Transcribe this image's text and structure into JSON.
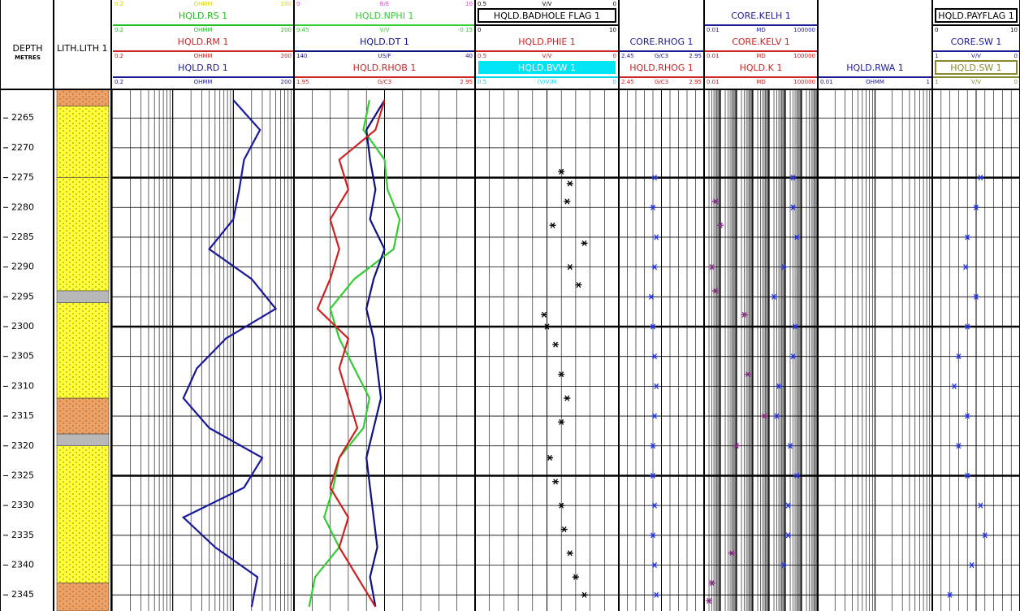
{
  "chart_data": {
    "type": "well_log",
    "depth_title": "DEPTH",
    "depth_unit": "METRES",
    "ylim": [
      2260.2,
      2347.7
    ],
    "yticks": [
      2265,
      2270,
      2275,
      2280,
      2285,
      2290,
      2295,
      2300,
      2305,
      2310,
      2315,
      2320,
      2325,
      2330,
      2335,
      2340,
      2345
    ],
    "lithology": {
      "name": "LITH.LITH 1",
      "intervals": [
        {
          "top": 2260.2,
          "base": 2263,
          "color": "#f0a060"
        },
        {
          "top": 2263,
          "base": 2275,
          "color": "#ffff33"
        },
        {
          "top": 2275,
          "base": 2294,
          "color": "#ffff33"
        },
        {
          "top": 2294,
          "base": 2296,
          "color": "#b8b8b8"
        },
        {
          "top": 2296,
          "base": 2312,
          "color": "#ffff33"
        },
        {
          "top": 2312,
          "base": 2318,
          "color": "#f0a060"
        },
        {
          "top": 2318,
          "base": 2320,
          "color": "#b8b8b8"
        },
        {
          "top": 2320,
          "base": 2343,
          "color": "#ffff33"
        },
        {
          "top": 2343,
          "base": 2347.7,
          "color": "#f0a060"
        }
      ]
    },
    "tracks": [
      {
        "scale": "log",
        "curves": [
          {
            "color": "#d8d800",
            "left": 0.2,
            "unit": "OHMM",
            "right": 200
          },
          {
            "name": "HQLD.RS 1",
            "color": "#22bb22",
            "left": 0.2,
            "unit": "OHMM",
            "right": 200
          },
          {
            "name": "HQLD.RM 1",
            "color": "#cc2222",
            "left": 0.2,
            "unit": "OHMM",
            "right": 200
          },
          {
            "name": "HQLD.RD 1",
            "color": "#1a1a99",
            "left": 0.2,
            "unit": "OHMM",
            "right": 200,
            "style": "line",
            "depths": [
              2262,
              2267,
              2272,
              2277,
              2282,
              2287,
              2292,
              2297,
              2302,
              2307,
              2312,
              2317,
              2322,
              2327,
              2332,
              2337,
              2342,
              2347
            ],
            "values": [
              20,
              55,
              30,
              25,
              20,
              8,
              40,
              100,
              15,
              5,
              3,
              8,
              60,
              30,
              3,
              10,
              50,
              40
            ]
          }
        ]
      },
      {
        "scale": "linear",
        "curves": [
          {
            "color": "#dd44dd",
            "left": 0,
            "unit": "B/E",
            "right": 10
          },
          {
            "name": "HQLD.NPHI 1",
            "color": "#33cc33",
            "left": 0.45,
            "unit": "V/V",
            "right": -0.15,
            "style": "line",
            "depths": [
              2262,
              2267,
              2272,
              2277,
              2282,
              2287,
              2292,
              2297,
              2302,
              2307,
              2312,
              2317,
              2322,
              2327,
              2332,
              2337,
              2342,
              2347
            ],
            "values": [
              0.2,
              0.22,
              0.15,
              0.14,
              0.1,
              0.12,
              0.25,
              0.33,
              0.3,
              0.25,
              0.2,
              0.22,
              0.3,
              0.32,
              0.35,
              0.3,
              0.38,
              0.4
            ]
          },
          {
            "name": "HQLD.DT 1",
            "color": "#101080",
            "left": 140,
            "unit": "US/F",
            "right": 40,
            "style": "line",
            "depths": [
              2262,
              2267,
              2272,
              2277,
              2282,
              2287,
              2292,
              2297,
              2302,
              2307,
              2312,
              2317,
              2322,
              2327,
              2332,
              2337,
              2342,
              2347
            ],
            "values": [
              90,
              100,
              98,
              95,
              98,
              90,
              96,
              100,
              96,
              94,
              92,
              96,
              100,
              98,
              96,
              94,
              98,
              95
            ]
          },
          {
            "name": "HQLD.RHOB 1",
            "color": "#cc2222",
            "left": 1.95,
            "unit": "G/C3",
            "right": 2.95,
            "style": "line",
            "depths": [
              2262,
              2267,
              2272,
              2277,
              2282,
              2287,
              2292,
              2297,
              2302,
              2307,
              2312,
              2317,
              2322,
              2327,
              2332,
              2337,
              2342,
              2347
            ],
            "values": [
              2.45,
              2.4,
              2.2,
              2.25,
              2.15,
              2.2,
              2.15,
              2.08,
              2.25,
              2.2,
              2.25,
              2.3,
              2.2,
              2.15,
              2.25,
              2.2,
              2.3,
              2.4
            ]
          }
        ]
      },
      {
        "scale": "linear",
        "curves": [
          {
            "color": "#000000",
            "left": 0.5,
            "unit": "V/V",
            "right": 0,
            "style": "points",
            "depths": [
              2274,
              2276,
              2279,
              2283,
              2286,
              2290,
              2293,
              2298,
              2300,
              2303,
              2308,
              2312,
              2316,
              2322,
              2326,
              2330,
              2334,
              2338,
              2342,
              2345
            ],
            "values": [
              0.2,
              0.17,
              0.18,
              0.23,
              0.12,
              0.17,
              0.14,
              0.26,
              0.25,
              0.22,
              0.2,
              0.18,
              0.2,
              0.24,
              0.22,
              0.2,
              0.19,
              0.17,
              0.15,
              0.12
            ]
          },
          {
            "name": "HQLD.BADHOLE FLAG 1",
            "color": "#000000",
            "left": 0,
            "right": 10,
            "box_stroke": "#000000"
          },
          {
            "name": "HQLD.PHIE 1",
            "color": "#cc2222",
            "left": 0.5,
            "unit": "V/V",
            "right": 0
          },
          {
            "name": "HQLD.BVW 1",
            "color": "#00d8e8",
            "left": 0.5,
            "unit": "(V/V)M",
            "right": 0,
            "box_fill": "#00e4f4"
          }
        ]
      },
      {
        "scale": "linear",
        "curves": [
          {
            "name": "CORE.RHOG 1",
            "color": "#1a1a99",
            "left": 2.45,
            "unit": "G/C3",
            "right": 2.95,
            "style": "points",
            "point_color": "#2233dd",
            "depths": [
              2275,
              2280,
              2285,
              2290,
              2295,
              2300,
              2305,
              2310,
              2315,
              2320,
              2325,
              2330,
              2335,
              2340,
              2345
            ],
            "values": [
              2.66,
              2.65,
              2.67,
              2.66,
              2.64,
              2.65,
              2.66,
              2.67,
              2.66,
              2.65,
              2.65,
              2.66,
              2.65,
              2.66,
              2.67
            ]
          },
          {
            "name": "HQLD.RHOG 1",
            "color": "#cc2222",
            "left": 2.45,
            "unit": "G/C3",
            "right": 2.95
          }
        ]
      },
      {
        "scale": "log",
        "curves": [
          {
            "name": "CORE.KELH 1",
            "color": "#1a1a99",
            "left": 0.01,
            "unit": "MD",
            "right": 100000,
            "style": "points",
            "point_color": "#2233dd",
            "depths": [
              2275,
              2280,
              2285,
              2290,
              2295,
              2300,
              2305,
              2310,
              2315,
              2320,
              2325,
              2330,
              2335,
              2340
            ],
            "values": [
              3000,
              3000,
              5000,
              800,
              200,
              4000,
              3000,
              400,
              300,
              2000,
              5000,
              1500,
              1500,
              800
            ]
          },
          {
            "name": "CORE.KELV 1",
            "color": "#cc2222",
            "left": 0.01,
            "unit": "MD",
            "right": 100000,
            "style": "points",
            "point_color": "#8a2a8a",
            "depths": [
              2279,
              2283,
              2290,
              2294,
              2298,
              2308,
              2315,
              2320,
              2338,
              2343,
              2346
            ],
            "values": [
              0.05,
              0.1,
              0.03,
              0.05,
              3,
              5,
              50,
              1,
              0.5,
              0.03,
              0.02
            ]
          },
          {
            "name": "HQLD.K 1",
            "color": "#cc2222",
            "left": 0.01,
            "unit": "MD",
            "right": 100000
          }
        ]
      },
      {
        "scale": "log",
        "curves": [
          {
            "name": "HQLD.RWA 1",
            "color": "#1a1a99",
            "left": 0.01,
            "unit": "OHMM",
            "right": 1
          }
        ]
      },
      {
        "scale": "linear",
        "curves": [
          {
            "name": "HQLD.PAYFLAG 1",
            "color": "#000000",
            "left": 0,
            "right": 10,
            "box_stroke": "#000000"
          },
          {
            "name": "CORE.SW 1",
            "color": "#1a1a99",
            "left": 1,
            "unit": "V/V",
            "right": 0,
            "style": "points",
            "point_color": "#2233dd",
            "depths": [
              2275,
              2280,
              2285,
              2290,
              2295,
              2300,
              2305,
              2310,
              2315,
              2320,
              2325,
              2330,
              2335,
              2340,
              2345
            ],
            "values": [
              0.45,
              0.5,
              0.6,
              0.62,
              0.5,
              0.6,
              0.7,
              0.75,
              0.6,
              0.7,
              0.6,
              0.45,
              0.4,
              0.55,
              0.8
            ]
          },
          {
            "name": "HQLD.SW 1",
            "color": "#8a8a30",
            "left": 1,
            "unit": "V/V",
            "right": 0,
            "box_stroke": "#8a8a30"
          }
        ]
      }
    ]
  }
}
